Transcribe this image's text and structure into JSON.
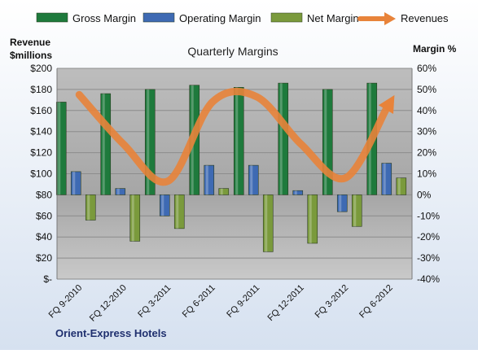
{
  "chart_data": {
    "type": "bar",
    "title": "Quarterly Margins",
    "company": "Orient-Express Hotels",
    "y_left_label_line1": "Revenue",
    "y_left_label_line2": "$millions",
    "y_right_label": "Margin %",
    "categories": [
      "FQ 9-2010",
      "FQ 12-2010",
      "FQ 3-2011",
      "FQ 6-2011",
      "FQ 9-2011",
      "FQ 12-2011",
      "FQ 3-2012",
      "FQ 6-2012"
    ],
    "y_left_ticks": [
      "$200",
      "$180",
      "$160",
      "$140",
      "$120",
      "$100",
      "$80",
      "$60",
      "$40",
      "$20",
      "$-"
    ],
    "y_right_ticks": [
      "60%",
      "50%",
      "40%",
      "30%",
      "20%",
      "10%",
      "0%",
      "-10%",
      "-20%",
      "-30%",
      "-40%"
    ],
    "ylim_left": [
      0,
      200
    ],
    "ylim_right": [
      -40,
      60
    ],
    "legend_position": "top",
    "grid": true,
    "series": [
      {
        "name": "Gross Margin",
        "axis": "right",
        "kind": "bar",
        "color": "#1e7a3c",
        "values": [
          44,
          48,
          50,
          52,
          51,
          53,
          50,
          53
        ]
      },
      {
        "name": "Operating Margin",
        "axis": "right",
        "kind": "bar",
        "color": "#3e6ab3",
        "values": [
          11,
          3,
          -10,
          14,
          14,
          2,
          -8,
          15
        ]
      },
      {
        "name": "Net Margin",
        "axis": "right",
        "kind": "bar",
        "color": "#7a9a3c",
        "values": [
          -12,
          -22,
          -16,
          3,
          -27,
          -23,
          -15,
          8
        ]
      },
      {
        "name": "Revenues",
        "axis": "left",
        "kind": "line",
        "color": "#e8833a",
        "values": [
          175,
          128,
          93,
          168,
          173,
          128,
          96,
          162
        ]
      }
    ]
  }
}
